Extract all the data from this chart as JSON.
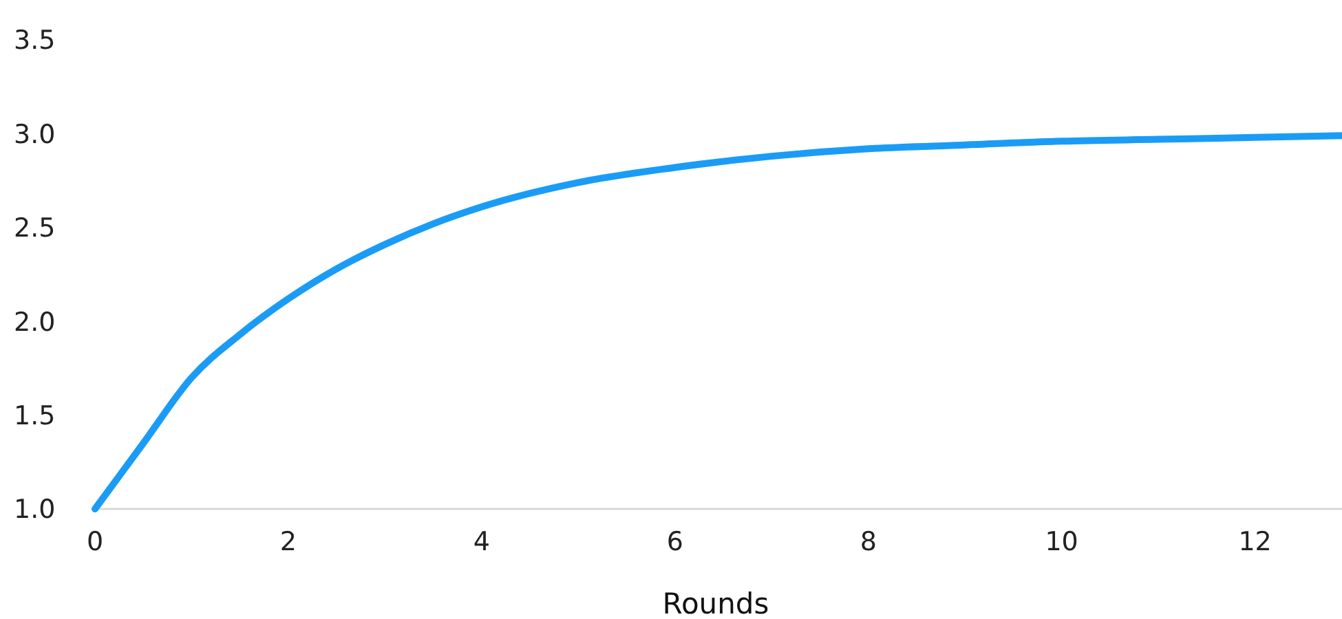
{
  "chart_data": {
    "type": "line",
    "xlabel": "Rounds",
    "x": [
      0,
      0.5,
      1,
      1.5,
      2,
      2.5,
      3,
      3.5,
      4,
      5,
      6,
      7,
      8,
      9,
      10,
      11,
      12,
      12.9
    ],
    "series": [
      {
        "color": "#1a9cf6",
        "values": [
          1.0,
          1.35,
          1.7,
          1.93,
          2.12,
          2.28,
          2.41,
          2.52,
          2.61,
          2.74,
          2.82,
          2.88,
          2.92,
          2.94,
          2.96,
          2.97,
          2.98,
          2.99
        ]
      }
    ],
    "xlim": [
      0,
      12.9
    ],
    "xticks": [
      0,
      2,
      4,
      6,
      8,
      10,
      12
    ],
    "ylim": [
      1,
      3.5
    ],
    "yticks": [
      {
        "value": 1,
        "label": "1.0"
      },
      {
        "value": 1.5,
        "label": "1.5"
      },
      {
        "value": 2,
        "label": "2.0"
      },
      {
        "value": 2.5,
        "label": "2.5"
      },
      {
        "value": 3,
        "label": "3.0"
      },
      {
        "value": 3.5,
        "label": "3.5"
      }
    ],
    "grid": false,
    "marker": "none",
    "line_style": "solid"
  }
}
